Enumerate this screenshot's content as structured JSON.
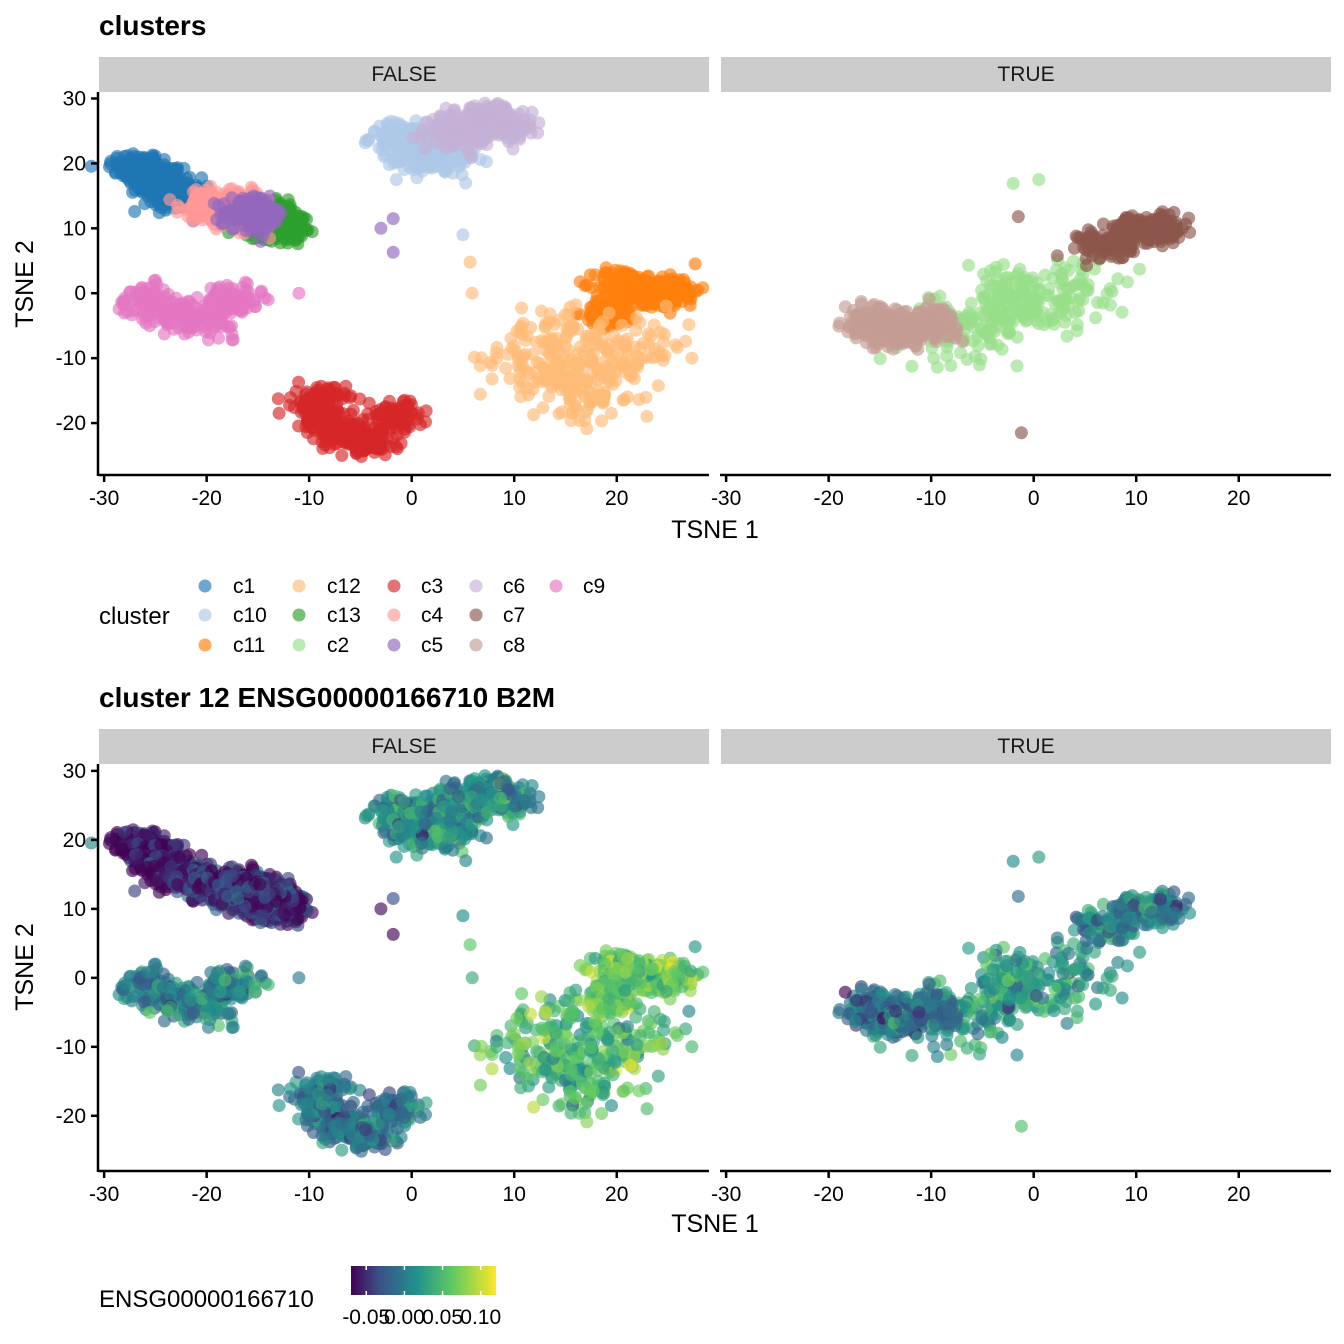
{
  "chart_data": [
    {
      "type": "scatter",
      "title": "clusters",
      "facet_labels": [
        "FALSE",
        "TRUE"
      ],
      "xlabel": "TSNE 1",
      "ylabel": "TSNE 2",
      "xlim": [
        -30.5,
        29
      ],
      "ylim": [
        -28,
        31
      ],
      "x_ticks": [
        -30,
        -20,
        -10,
        0,
        10,
        20
      ],
      "y_ticks": [
        30,
        20,
        10,
        0,
        -10,
        -20
      ],
      "legend": {
        "title": "cluster",
        "position": "bottom",
        "entries": [
          {
            "name": "c1",
            "color": "#1f77b4"
          },
          {
            "name": "c10",
            "color": "#aec7e8"
          },
          {
            "name": "c11",
            "color": "#ff7f0e"
          },
          {
            "name": "c12",
            "color": "#ffbb78"
          },
          {
            "name": "c13",
            "color": "#2ca02c"
          },
          {
            "name": "c2",
            "color": "#98df8a"
          },
          {
            "name": "c3",
            "color": "#d62728"
          },
          {
            "name": "c4",
            "color": "#ff9896"
          },
          {
            "name": "c5",
            "color": "#9467bd"
          },
          {
            "name": "c6",
            "color": "#c5b0d5"
          },
          {
            "name": "c7",
            "color": "#8c564b"
          },
          {
            "name": "c8",
            "color": "#c49c94"
          },
          {
            "name": "c9",
            "color": "#e377c2"
          }
        ]
      },
      "series": [
        {
          "name": "c1",
          "panel": "FALSE",
          "x": [
            -27,
            -26,
            -25,
            -24,
            -23,
            -22.5
          ],
          "y": [
            19.5,
            19,
            17.5,
            16.5,
            15.5,
            14.5
          ]
        },
        {
          "name": "c10",
          "panel": "FALSE",
          "x": [
            -1.5,
            0.5,
            2.5,
            3.5,
            -1.5,
            5
          ],
          "y": [
            24,
            21,
            24,
            20.5,
            17.5,
            9
          ]
        },
        {
          "name": "c11",
          "panel": "FALSE",
          "x": [
            22,
            24,
            25.5,
            20.5,
            19.5
          ],
          "y": [
            0,
            0,
            0.5,
            1.5,
            -3
          ]
        },
        {
          "name": "c12",
          "panel": "FALSE",
          "x": [
            12,
            15,
            19,
            22,
            17,
            14,
            5.7,
            5.9
          ],
          "y": [
            -10,
            -13,
            -11,
            -8,
            -16,
            -6,
            4.8,
            0
          ]
        },
        {
          "name": "c13",
          "panel": "FALSE",
          "x": [
            -14,
            -13
          ],
          "y": [
            11.5,
            10.5
          ]
        },
        {
          "name": "c2",
          "panel": "TRUE",
          "x": [
            -5,
            0,
            4,
            -3,
            -8,
            -2,
            0.5
          ],
          "y": [
            -5,
            -2,
            1,
            0,
            -6,
            16.9,
            17.5
          ]
        },
        {
          "name": "c3",
          "panel": "FALSE",
          "x": [
            -8,
            -6,
            -4,
            -9,
            -1.5
          ],
          "y": [
            -20,
            -22,
            -23,
            -16.5,
            -19
          ]
        },
        {
          "name": "c4",
          "panel": "FALSE",
          "x": [
            -20,
            -18,
            -16
          ],
          "y": [
            13.5,
            13,
            12.5
          ]
        },
        {
          "name": "c5",
          "panel": "FALSE",
          "x": [
            -16,
            -15,
            -3,
            -1.8,
            -1.8
          ],
          "y": [
            12.5,
            12,
            10,
            11.5,
            6.3
          ]
        },
        {
          "name": "c6",
          "panel": "FALSE",
          "x": [
            4.5,
            7,
            9
          ],
          "y": [
            25,
            27,
            26
          ]
        },
        {
          "name": "c7",
          "panel": "TRUE",
          "x": [
            7,
            10,
            12.5,
            -1.5,
            -1.2
          ],
          "y": [
            7.5,
            9.5,
            10,
            11.8,
            -21.5
          ]
        },
        {
          "name": "c8",
          "panel": "TRUE",
          "x": [
            -16,
            -14,
            -12,
            -10
          ],
          "y": [
            -4.5,
            -5.5,
            -6,
            -4.5
          ]
        },
        {
          "name": "c9",
          "panel": "FALSE",
          "x": [
            -26,
            -23,
            -20,
            -17.5,
            -14,
            -11
          ],
          "y": [
            -1,
            -3,
            -4,
            -1,
            -1,
            0
          ]
        }
      ]
    },
    {
      "type": "scatter",
      "title": "cluster 12 ENSG00000166710 B2M",
      "facet_labels": [
        "FALSE",
        "TRUE"
      ],
      "xlabel": "TSNE 1",
      "ylabel": "TSNE 2",
      "xlim": [
        -30.5,
        29
      ],
      "ylim": [
        -28,
        31
      ],
      "x_ticks": [
        -30,
        -20,
        -10,
        0,
        10,
        20
      ],
      "y_ticks": [
        30,
        20,
        10,
        0,
        -10,
        -20
      ],
      "color_scale": {
        "title": "ENSG00000166710",
        "palette": "viridis",
        "range": [
          -0.07,
          0.12
        ],
        "ticks": [
          "-0.05",
          "0.00",
          "0.05",
          "0.10"
        ],
        "tick_values": [
          -0.05,
          0.0,
          0.05,
          0.1
        ]
      },
      "note_values": "same cells as upper plot; color encodes expression"
    }
  ]
}
